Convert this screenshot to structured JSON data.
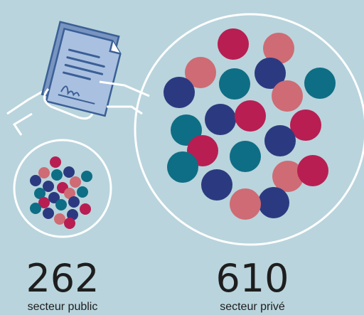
{
  "items": [
    {
      "value": 262,
      "label": "secteur public"
    },
    {
      "value": 610,
      "label": "secteur privé"
    }
  ]
}
